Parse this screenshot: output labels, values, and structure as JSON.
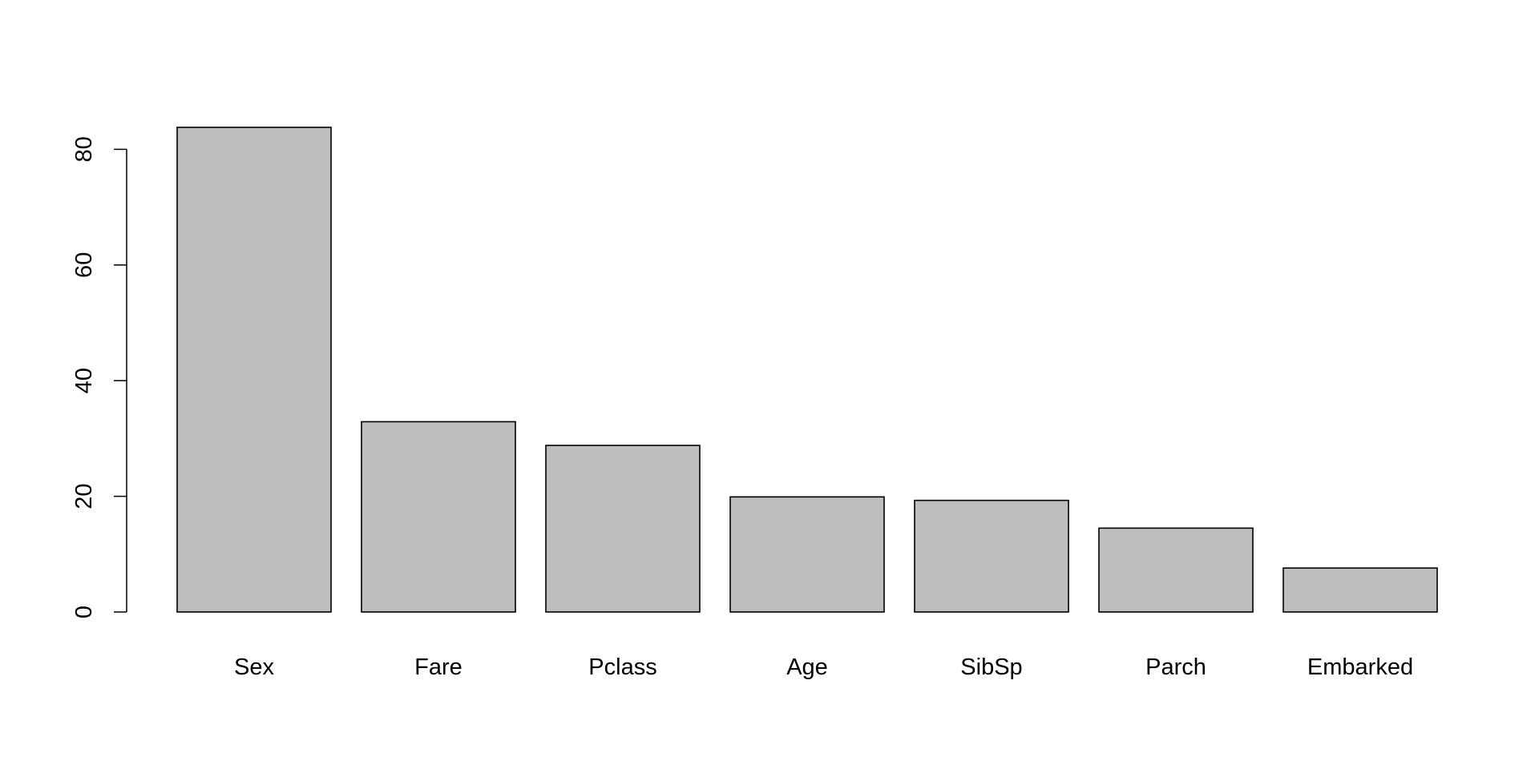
{
  "chart_data": {
    "type": "bar",
    "title": "",
    "xlabel": "",
    "ylabel": "",
    "categories": [
      "Sex",
      "Fare",
      "Pclass",
      "Age",
      "SibSp",
      "Parch",
      "Embarked"
    ],
    "values": [
      83.8,
      32.9,
      28.8,
      19.9,
      19.3,
      14.5,
      7.6
    ],
    "ylim": [
      0,
      86
    ],
    "yticks": [
      0,
      20,
      40,
      60,
      80
    ],
    "ytick_labels": [
      "0",
      "20",
      "40",
      "60",
      "80"
    ],
    "grid": false,
    "legend": "none",
    "colors": {
      "bar_fill": "#bebebe",
      "bar_stroke": "#000000",
      "axis": "#000000"
    }
  }
}
